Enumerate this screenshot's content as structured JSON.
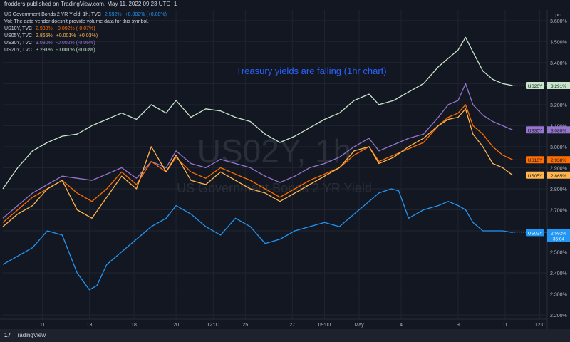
{
  "publisher_text": "frodders published on TradingView.com, May 11, 2022 09:23 UTC+1",
  "legend": {
    "main": {
      "name": "US Government Bonds 2 YR Yield, 1h, TVC",
      "value": "2.592%",
      "change": "+0.002% (+0.08%)",
      "color": "#2196f3"
    },
    "notice": "Vol: The data vendor doesn't provide volume data for this symbol.",
    "rows": [
      {
        "name": "US10Y, TVC",
        "value": "2.938%",
        "change": "-0.002% (-0.07%)",
        "color": "#ff6d00"
      },
      {
        "name": "US05Y, TVC",
        "value": "2.865%",
        "change": "+0.001% (+0.03%)",
        "color": "#ffb74d"
      },
      {
        "name": "US30Y, TVC",
        "value": "3.080%",
        "change": "-0.002% (-0.06%)",
        "color": "#9575cd"
      },
      {
        "name": "US20Y, TVC",
        "value": "3.291%",
        "change": "-0.001% (-0.03%)",
        "color": "#c8e6c9"
      }
    ]
  },
  "footer_logo": "TradingView",
  "chart_data": {
    "type": "line",
    "title": "Treasury yields are falling (1hr chart)",
    "watermark_symbol": "US02Y, 1h",
    "watermark_name": "US Government Bonds 2 YR Yield",
    "y_unit": "pct",
    "ylim": [
      2.18,
      3.65
    ],
    "y_ticks": [
      "3.600%",
      "3.500%",
      "3.400%",
      "3.300%",
      "3.200%",
      "3.100%",
      "3.000%",
      "2.900%",
      "2.800%",
      "2.700%",
      "2.600%",
      "2.500%",
      "2.400%",
      "2.300%",
      "2.200%"
    ],
    "y_tick_values": [
      3.6,
      3.5,
      3.4,
      3.3,
      3.2,
      3.1,
      3.0,
      2.9,
      2.8,
      2.7,
      2.6,
      2.5,
      2.4,
      2.3,
      2.2
    ],
    "x_ticks": [
      {
        "label": "11",
        "x": 0.08
      },
      {
        "label": "13",
        "x": 0.175
      },
      {
        "label": "18",
        "x": 0.265
      },
      {
        "label": "20",
        "x": 0.35
      },
      {
        "label": "12:00",
        "x": 0.425
      },
      {
        "label": "25",
        "x": 0.49
      },
      {
        "label": "27",
        "x": 0.585
      },
      {
        "label": "09:00",
        "x": 0.65
      },
      {
        "label": "May",
        "x": 0.72
      },
      {
        "label": "4",
        "x": 0.805
      },
      {
        "label": "9",
        "x": 0.92
      },
      {
        "label": "11",
        "x": 1.015
      },
      {
        "label": "12:0",
        "x": 1.085
      }
    ],
    "x_range": [
      0,
      1.1
    ],
    "series": [
      {
        "name": "US20Y",
        "label_value": "3.291%",
        "color": "#c8e6c9",
        "label_bg": "#c8e6c9",
        "label_fg": "#131722",
        "x": [
          0,
          0.03,
          0.06,
          0.09,
          0.12,
          0.15,
          0.18,
          0.21,
          0.24,
          0.27,
          0.3,
          0.33,
          0.35,
          0.38,
          0.41,
          0.44,
          0.47,
          0.5,
          0.53,
          0.56,
          0.59,
          0.62,
          0.65,
          0.68,
          0.71,
          0.74,
          0.76,
          0.79,
          0.82,
          0.85,
          0.88,
          0.9,
          0.92,
          0.935,
          0.95,
          0.97,
          0.99,
          1.01,
          1.03
        ],
        "values": [
          2.8,
          2.9,
          2.98,
          3.02,
          3.05,
          3.06,
          3.1,
          3.13,
          3.16,
          3.13,
          3.2,
          3.16,
          3.22,
          3.14,
          3.18,
          3.17,
          3.14,
          3.12,
          3.06,
          3.02,
          3.05,
          3.09,
          3.13,
          3.16,
          3.22,
          3.25,
          3.2,
          3.22,
          3.26,
          3.3,
          3.38,
          3.42,
          3.46,
          3.52,
          3.45,
          3.36,
          3.32,
          3.3,
          3.291
        ]
      },
      {
        "name": "US30Y",
        "label_value": "3.080%",
        "color": "#9575cd",
        "label_bg": "#9575cd",
        "label_fg": "#131722",
        "x": [
          0,
          0.03,
          0.06,
          0.09,
          0.12,
          0.15,
          0.18,
          0.21,
          0.24,
          0.27,
          0.3,
          0.33,
          0.35,
          0.38,
          0.41,
          0.44,
          0.47,
          0.5,
          0.53,
          0.56,
          0.59,
          0.62,
          0.65,
          0.68,
          0.71,
          0.74,
          0.76,
          0.79,
          0.82,
          0.85,
          0.88,
          0.9,
          0.92,
          0.935,
          0.95,
          0.97,
          0.99,
          1.01,
          1.03
        ],
        "values": [
          2.66,
          2.72,
          2.78,
          2.82,
          2.86,
          2.85,
          2.84,
          2.87,
          2.9,
          2.85,
          2.93,
          2.9,
          2.98,
          2.92,
          2.9,
          2.94,
          2.92,
          2.9,
          2.86,
          2.83,
          2.86,
          2.9,
          2.92,
          2.95,
          3.0,
          3.04,
          2.98,
          3.01,
          3.04,
          3.06,
          3.14,
          3.2,
          3.22,
          3.3,
          3.2,
          3.15,
          3.12,
          3.1,
          3.08
        ]
      },
      {
        "name": "US10Y",
        "label_value": "2.938%",
        "color": "#ff6d00",
        "label_bg": "#ff6d00",
        "label_fg": "#131722",
        "x": [
          0,
          0.03,
          0.06,
          0.09,
          0.12,
          0.15,
          0.18,
          0.21,
          0.24,
          0.27,
          0.3,
          0.33,
          0.35,
          0.38,
          0.41,
          0.44,
          0.47,
          0.5,
          0.53,
          0.56,
          0.59,
          0.62,
          0.65,
          0.68,
          0.71,
          0.74,
          0.76,
          0.79,
          0.82,
          0.85,
          0.88,
          0.9,
          0.92,
          0.935,
          0.95,
          0.97,
          0.99,
          1.01,
          1.03
        ],
        "values": [
          2.64,
          2.7,
          2.76,
          2.8,
          2.84,
          2.78,
          2.74,
          2.8,
          2.88,
          2.82,
          2.93,
          2.88,
          2.95,
          2.88,
          2.85,
          2.9,
          2.87,
          2.84,
          2.8,
          2.76,
          2.8,
          2.84,
          2.87,
          2.9,
          2.96,
          3.0,
          2.93,
          2.96,
          2.99,
          3.02,
          3.1,
          3.14,
          3.16,
          3.2,
          3.1,
          3.06,
          3.0,
          2.96,
          2.938
        ]
      },
      {
        "name": "US05Y",
        "label_value": "2.865%",
        "color": "#ffb74d",
        "label_bg": "#ffb74d",
        "label_fg": "#131722",
        "x": [
          0,
          0.03,
          0.06,
          0.09,
          0.12,
          0.15,
          0.18,
          0.21,
          0.24,
          0.27,
          0.3,
          0.33,
          0.35,
          0.38,
          0.41,
          0.44,
          0.47,
          0.5,
          0.53,
          0.56,
          0.59,
          0.62,
          0.65,
          0.68,
          0.71,
          0.74,
          0.76,
          0.79,
          0.82,
          0.85,
          0.88,
          0.9,
          0.92,
          0.935,
          0.95,
          0.97,
          0.99,
          1.01,
          1.03
        ],
        "values": [
          2.62,
          2.68,
          2.72,
          2.8,
          2.84,
          2.7,
          2.66,
          2.76,
          2.86,
          2.8,
          3.0,
          2.88,
          2.96,
          2.84,
          2.82,
          2.88,
          2.84,
          2.8,
          2.78,
          2.74,
          2.78,
          2.82,
          2.86,
          2.9,
          2.98,
          3.0,
          2.92,
          2.95,
          3.0,
          3.04,
          3.1,
          3.13,
          3.14,
          3.18,
          3.06,
          3.0,
          2.92,
          2.9,
          2.865
        ]
      },
      {
        "name": "US02Y",
        "label_value": "2.592%",
        "label_sub": "36:04",
        "color": "#2196f3",
        "label_bg": "#2196f3",
        "label_fg": "#ffffff",
        "x": [
          0,
          0.03,
          0.06,
          0.09,
          0.12,
          0.15,
          0.175,
          0.19,
          0.21,
          0.24,
          0.27,
          0.3,
          0.33,
          0.35,
          0.38,
          0.41,
          0.44,
          0.47,
          0.5,
          0.53,
          0.56,
          0.59,
          0.62,
          0.65,
          0.68,
          0.71,
          0.74,
          0.76,
          0.785,
          0.8,
          0.82,
          0.85,
          0.88,
          0.9,
          0.92,
          0.935,
          0.95,
          0.97,
          0.99,
          1.01,
          1.03
        ],
        "values": [
          2.44,
          2.48,
          2.52,
          2.6,
          2.58,
          2.4,
          2.32,
          2.34,
          2.44,
          2.5,
          2.56,
          2.62,
          2.66,
          2.72,
          2.68,
          2.62,
          2.58,
          2.66,
          2.62,
          2.54,
          2.56,
          2.6,
          2.62,
          2.64,
          2.62,
          2.68,
          2.74,
          2.78,
          2.8,
          2.79,
          2.66,
          2.7,
          2.72,
          2.74,
          2.72,
          2.7,
          2.64,
          2.6,
          2.6,
          2.6,
          2.592
        ]
      }
    ]
  }
}
